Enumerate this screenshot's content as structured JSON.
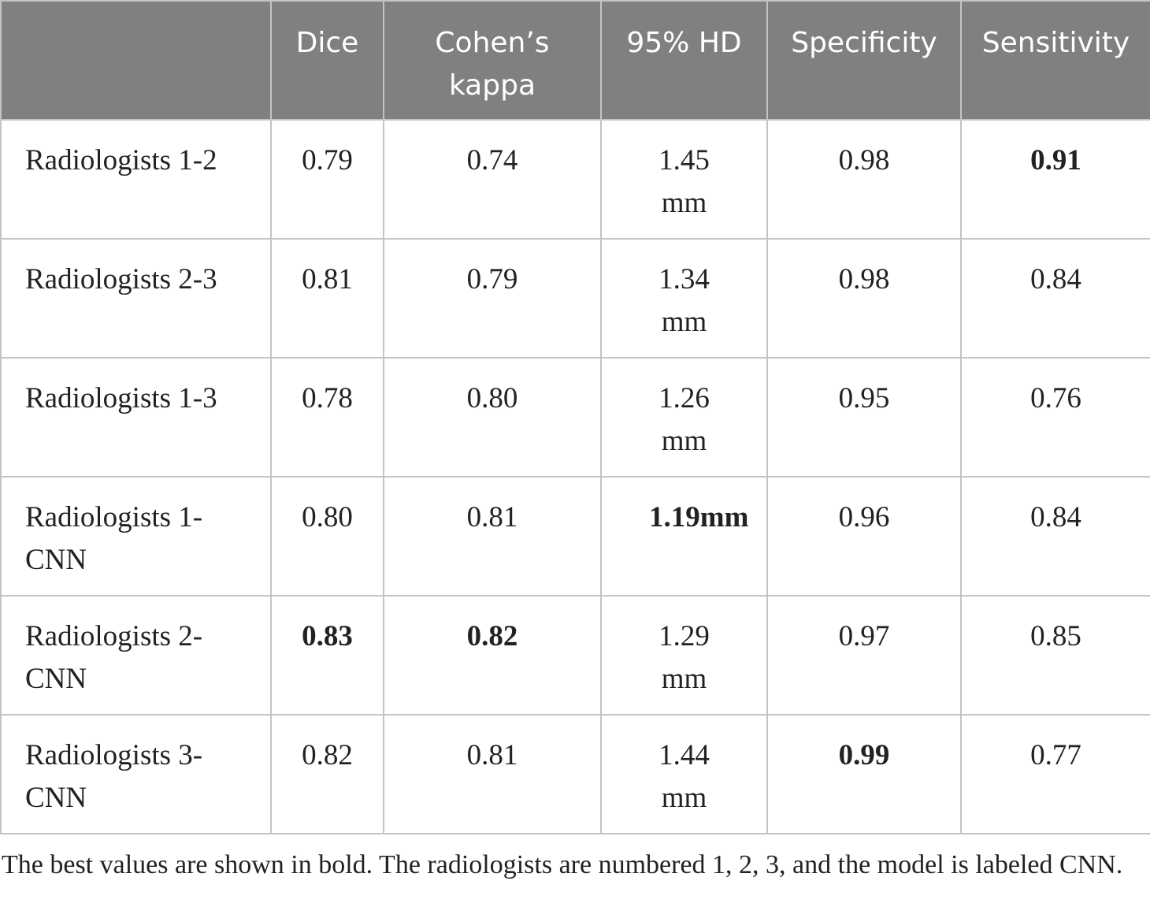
{
  "table": {
    "columns": [
      "Dice",
      "Cohen’s kappa",
      "95% HD",
      "Specificity",
      "Sensitivity"
    ],
    "rows": [
      {
        "label": "Radiologists 1-2",
        "values": [
          "0.79",
          "0.74",
          "1.45 mm",
          "0.98",
          "0.91"
        ]
      },
      {
        "label": "Radiologists 2-3",
        "values": [
          "0.81",
          "0.79",
          "1.34 mm",
          "0.98",
          "0.84"
        ]
      },
      {
        "label": "Radiologists 1-3",
        "values": [
          "0.78",
          "0.80",
          "1.26 mm",
          "0.95",
          "0.76"
        ]
      },
      {
        "label": "Radiologists 1-CNN",
        "values": [
          "0.80",
          "0.81",
          "1.19mm",
          "0.96",
          "0.84"
        ]
      },
      {
        "label": "Radiologists 2-CNN",
        "values": [
          "0.83",
          "0.82",
          "1.29 mm",
          "0.97",
          "0.85"
        ]
      },
      {
        "label": "Radiologists 3-CNN",
        "values": [
          "0.82",
          "0.81",
          "1.44 mm",
          "0.99",
          "0.77"
        ]
      }
    ]
  },
  "footnote": "The best values are shown in bold. The radiologists are numbered 1, 2, 3, and the model is labeled CNN."
}
